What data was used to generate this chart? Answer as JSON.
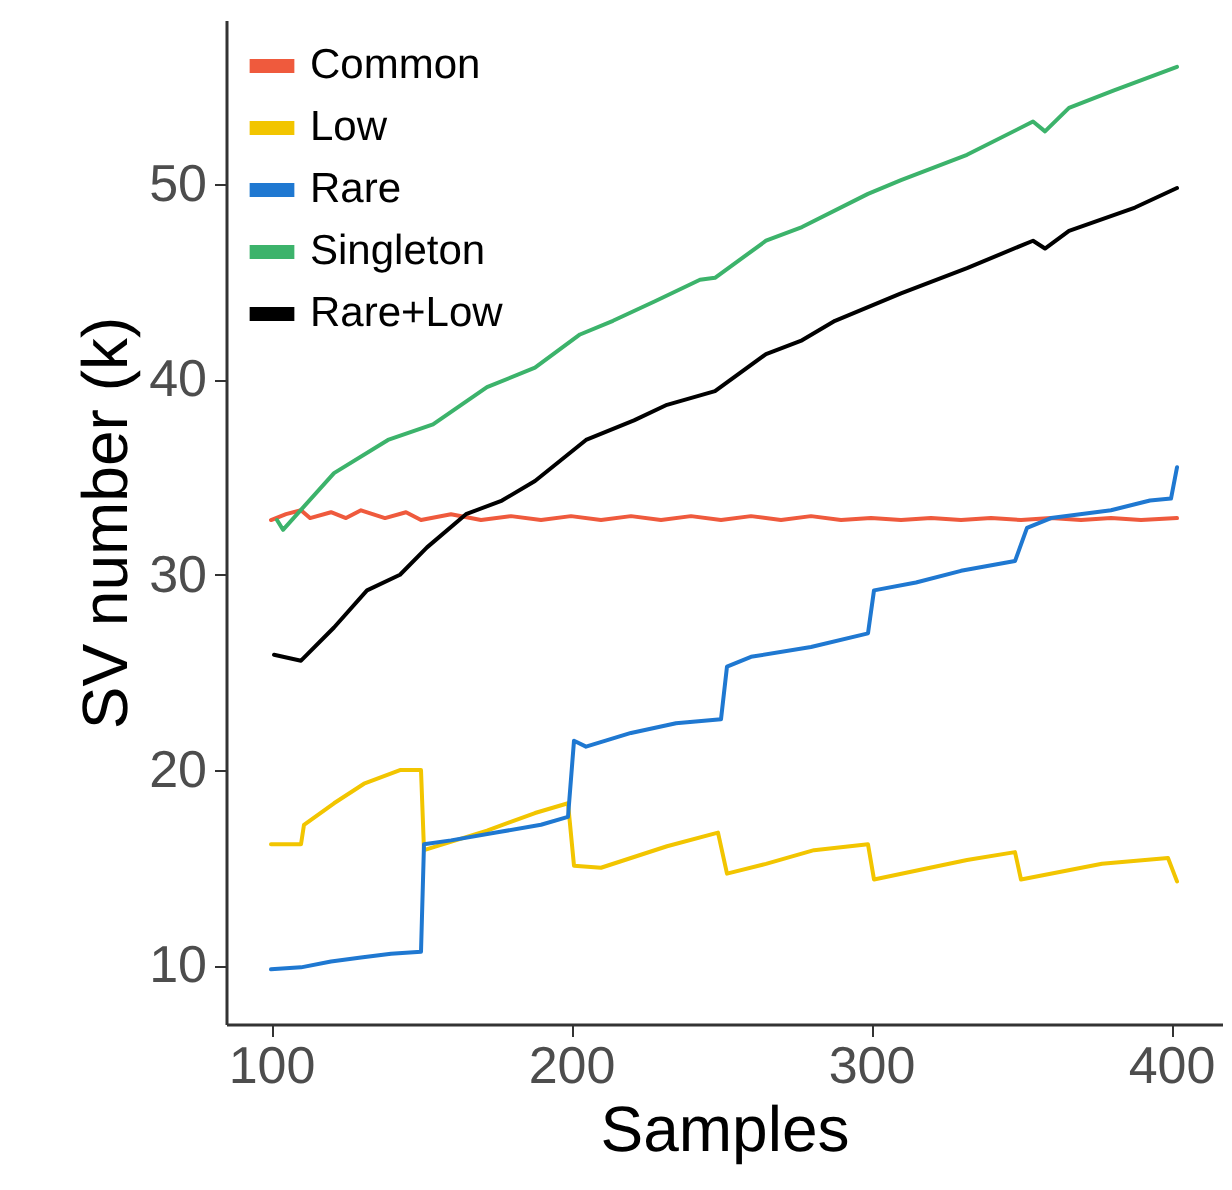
{
  "chart_data": {
    "type": "line",
    "xlabel": "Samples",
    "ylabel": "SV number (k)",
    "xlim": [
      85,
      417
    ],
    "ylim": [
      7,
      58.4
    ],
    "xticks": [
      100,
      200,
      300,
      400
    ],
    "yticks": [
      10,
      20,
      30,
      40,
      50
    ],
    "grid": false,
    "legend": "top left",
    "series": [
      {
        "name": "Common",
        "color": "#ef5a3d",
        "x": [
          100,
          105,
          110,
          113,
          120,
          125,
          130,
          138,
          145,
          150,
          160,
          170,
          180,
          190,
          200,
          210,
          220,
          230,
          240,
          250,
          260,
          270,
          280,
          290,
          300,
          310,
          320,
          330,
          340,
          350,
          360,
          370,
          380,
          390,
          402
        ],
        "values": [
          32.8,
          33.1,
          33.3,
          32.9,
          33.2,
          32.9,
          33.3,
          32.9,
          33.2,
          32.8,
          33.1,
          32.8,
          33.0,
          32.8,
          33.0,
          32.8,
          33.0,
          32.8,
          33.0,
          32.8,
          33.0,
          32.8,
          33.0,
          32.8,
          32.9,
          32.8,
          32.9,
          32.8,
          32.9,
          32.8,
          32.9,
          32.8,
          32.9,
          32.8,
          32.9
        ]
      },
      {
        "name": "Low",
        "color": "#f2c500",
        "x": [
          100,
          110,
          111,
          121,
          131,
          143,
          150,
          151,
          172,
          188,
          199,
          201,
          210,
          232,
          249,
          252,
          265,
          281,
          299,
          301,
          332,
          348,
          350,
          377,
          399,
          402
        ],
        "values": [
          16.2,
          16.2,
          17.2,
          18.3,
          19.3,
          20.0,
          20.0,
          15.9,
          16.9,
          17.8,
          18.3,
          15.1,
          15.0,
          16.1,
          16.8,
          14.7,
          15.2,
          15.9,
          16.2,
          14.4,
          15.4,
          15.8,
          14.4,
          15.2,
          15.5,
          14.3
        ]
      },
      {
        "name": "Rare",
        "color": "#1f78d1",
        "x": [
          100,
          110,
          120,
          130,
          140,
          150,
          151,
          160,
          175,
          190,
          199,
          201,
          205,
          220,
          235,
          250,
          252,
          260,
          280,
          299,
          301,
          315,
          330,
          348,
          352,
          360,
          380,
          393,
          400,
          402
        ],
        "values": [
          9.8,
          9.9,
          10.2,
          10.4,
          10.6,
          10.7,
          16.2,
          16.4,
          16.8,
          17.2,
          17.6,
          21.5,
          21.2,
          21.9,
          22.4,
          22.6,
          25.3,
          25.8,
          26.3,
          27.0,
          29.2,
          29.6,
          30.2,
          30.7,
          32.4,
          32.9,
          33.3,
          33.8,
          33.9,
          35.5
        ]
      },
      {
        "name": "Singleton",
        "color": "#3cb36b",
        "x": [
          102,
          104,
          121,
          139,
          154,
          172,
          188,
          203,
          214,
          228,
          243,
          248,
          265,
          277,
          299,
          310,
          332,
          354,
          358,
          366,
          381,
          402
        ],
        "values": [
          32.8,
          32.3,
          35.2,
          36.9,
          37.7,
          39.6,
          40.6,
          42.3,
          43.0,
          44.0,
          45.1,
          45.2,
          47.1,
          47.8,
          49.5,
          50.2,
          51.5,
          53.2,
          52.7,
          53.9,
          54.8,
          56.0
        ]
      },
      {
        "name": "Rare+Low",
        "color": "#000000",
        "x": [
          101,
          110,
          121,
          132,
          143,
          152,
          165,
          177,
          188,
          205,
          221,
          232,
          248,
          265,
          277,
          288,
          310,
          332,
          354,
          358,
          366,
          388,
          402
        ],
        "values": [
          25.9,
          25.6,
          27.3,
          29.2,
          30.0,
          31.4,
          33.1,
          33.8,
          34.8,
          36.9,
          37.9,
          38.7,
          39.4,
          41.3,
          42.0,
          43.0,
          44.4,
          45.7,
          47.1,
          46.7,
          47.6,
          48.8,
          49.8
        ]
      }
    ]
  }
}
